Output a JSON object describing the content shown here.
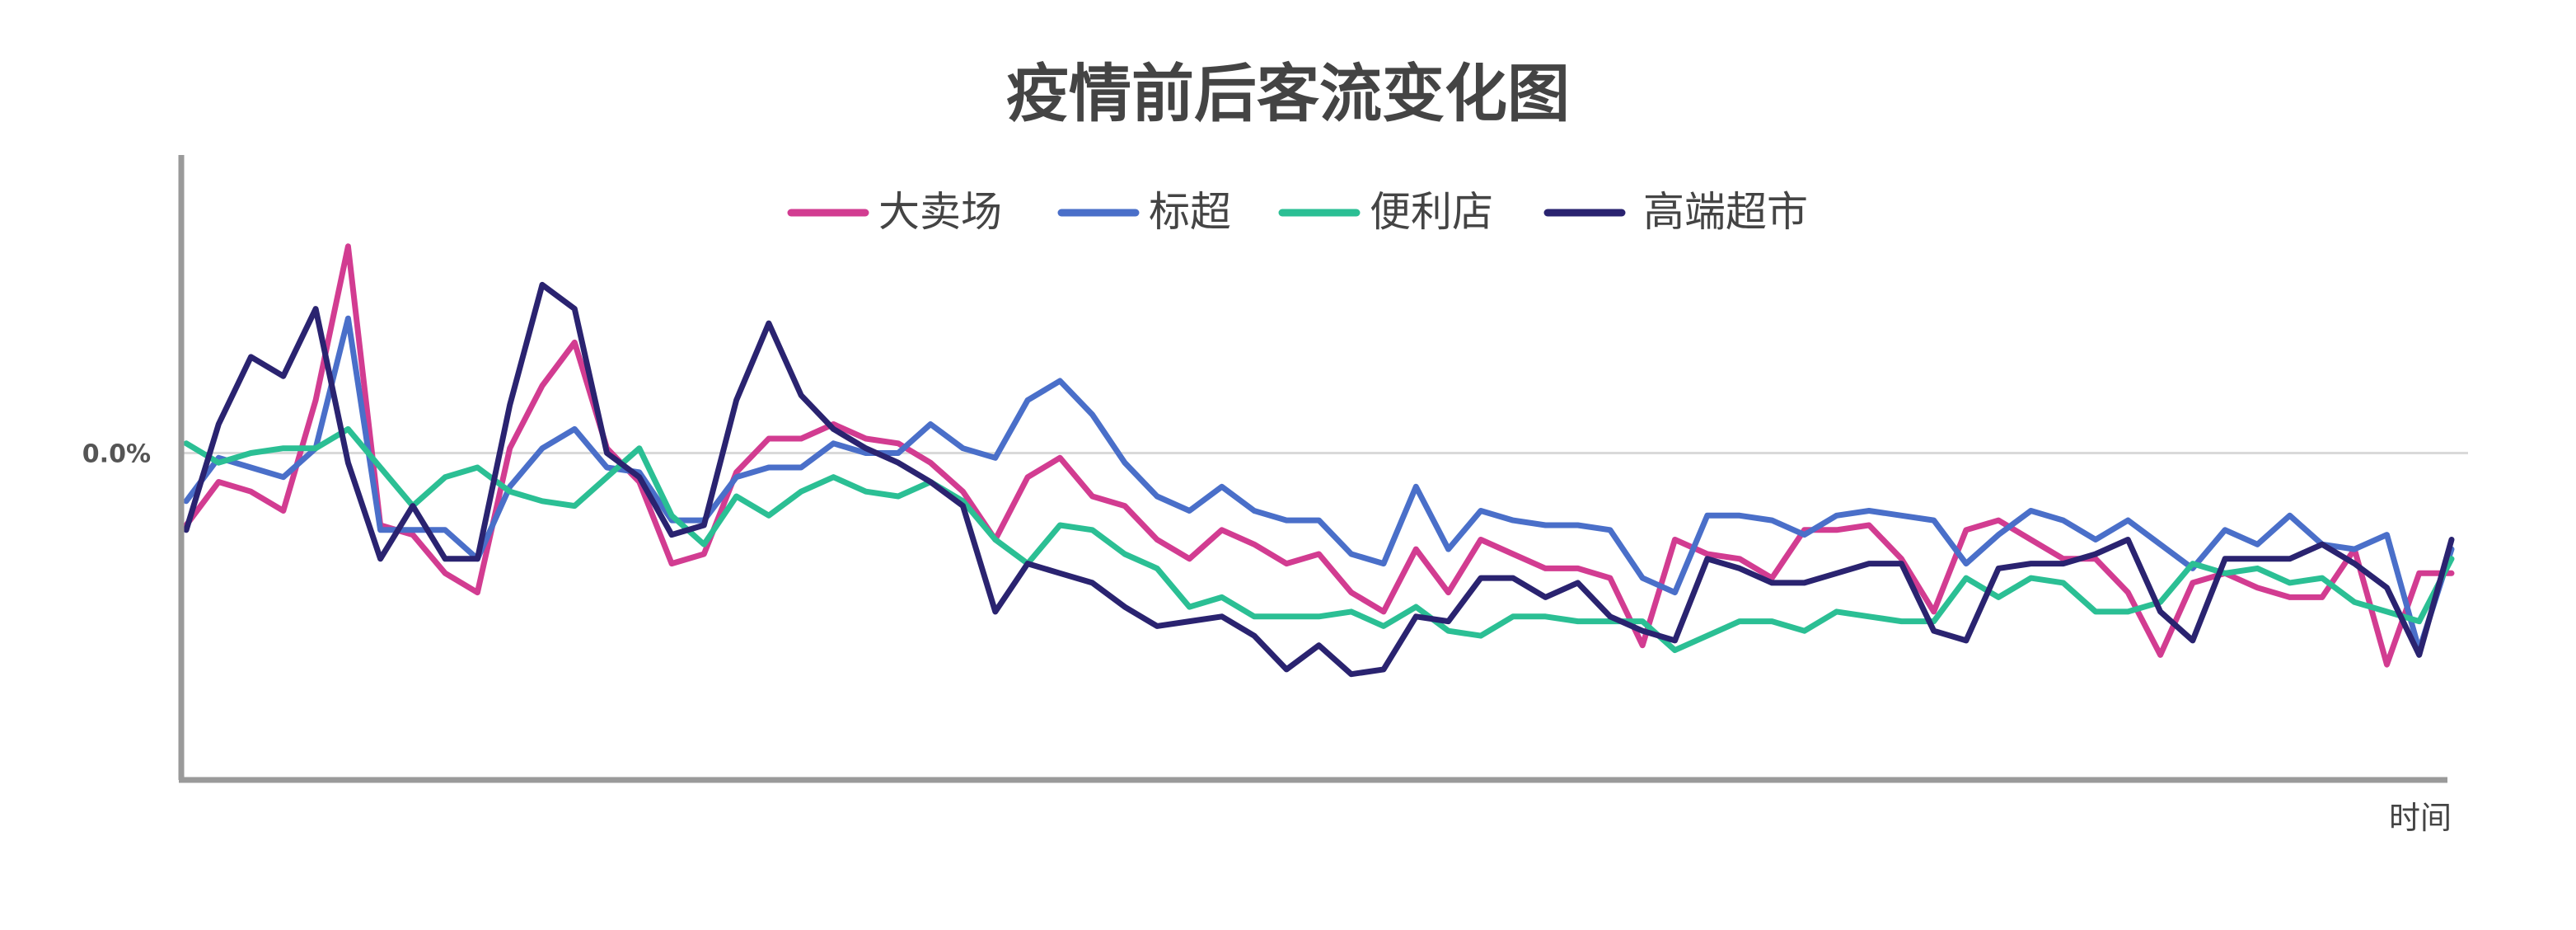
{
  "chart_data": {
    "type": "line",
    "title": "疫情前后客流变化图",
    "xlabel": "时间",
    "ylabel": "",
    "y_ticks": [
      {
        "value": 0,
        "label": "0.0%"
      }
    ],
    "ylim": [
      -0.68,
      0.62
    ],
    "x": [
      0,
      1,
      2,
      3,
      4,
      5,
      6,
      7,
      8,
      9,
      10,
      11,
      12,
      13,
      14,
      15,
      16,
      17,
      18,
      19,
      20,
      21,
      22,
      23,
      24,
      25,
      26,
      27,
      28,
      29,
      30,
      31,
      32,
      33,
      34,
      35,
      36,
      37,
      38,
      39,
      40,
      41,
      42,
      43,
      44,
      45,
      46,
      47,
      48,
      49,
      50,
      51,
      52,
      53,
      54,
      55,
      56,
      57,
      58,
      59,
      60,
      61,
      62,
      63,
      64,
      65,
      66,
      67,
      68,
      69,
      70
    ],
    "grid": false,
    "legend_position": "top",
    "series": [
      {
        "name": "大卖场",
        "color": "#d23c91",
        "values": [
          -0.15,
          -0.06,
          -0.08,
          -0.12,
          0.11,
          0.43,
          -0.15,
          -0.17,
          -0.25,
          -0.29,
          0.01,
          0.14,
          0.23,
          0.01,
          -0.06,
          -0.23,
          -0.21,
          -0.04,
          0.03,
          0.03,
          0.06,
          0.03,
          0.02,
          -0.02,
          -0.08,
          -0.18,
          -0.05,
          -0.01,
          -0.09,
          -0.11,
          -0.18,
          -0.22,
          -0.16,
          -0.19,
          -0.23,
          -0.21,
          -0.29,
          -0.33,
          -0.2,
          -0.29,
          -0.18,
          -0.21,
          -0.24,
          -0.24,
          -0.26,
          -0.4,
          -0.18,
          -0.21,
          -0.22,
          -0.26,
          -0.16,
          -0.16,
          -0.15,
          -0.22,
          -0.33,
          -0.16,
          -0.14,
          -0.18,
          -0.22,
          -0.22,
          -0.29,
          -0.42,
          -0.27,
          -0.25,
          -0.28,
          -0.3,
          -0.3,
          -0.2,
          -0.44,
          -0.25,
          -0.25
        ]
      },
      {
        "name": "标超",
        "color": "#4a6fc9",
        "values": [
          -0.1,
          -0.01,
          -0.03,
          -0.05,
          0.01,
          0.28,
          -0.16,
          -0.16,
          -0.16,
          -0.22,
          -0.07,
          0.01,
          0.05,
          -0.03,
          -0.04,
          -0.14,
          -0.14,
          -0.05,
          -0.03,
          -0.03,
          0.02,
          0.0,
          0.0,
          0.06,
          0.01,
          -0.01,
          0.11,
          0.15,
          0.08,
          -0.02,
          -0.09,
          -0.12,
          -0.07,
          -0.12,
          -0.14,
          -0.14,
          -0.21,
          -0.23,
          -0.07,
          -0.2,
          -0.12,
          -0.14,
          -0.15,
          -0.15,
          -0.16,
          -0.26,
          -0.29,
          -0.13,
          -0.13,
          -0.14,
          -0.17,
          -0.13,
          -0.12,
          -0.13,
          -0.14,
          -0.23,
          -0.17,
          -0.12,
          -0.14,
          -0.18,
          -0.14,
          -0.19,
          -0.24,
          -0.16,
          -0.19,
          -0.13,
          -0.19,
          -0.2,
          -0.17,
          -0.41,
          -0.2
        ]
      },
      {
        "name": "便利店",
        "color": "#2bbf94",
        "values": [
          0.02,
          -0.02,
          0.0,
          0.01,
          0.01,
          0.05,
          -0.03,
          -0.11,
          -0.05,
          -0.03,
          -0.08,
          -0.1,
          -0.11,
          -0.05,
          0.01,
          -0.13,
          -0.19,
          -0.09,
          -0.13,
          -0.08,
          -0.05,
          -0.08,
          -0.09,
          -0.06,
          -0.1,
          -0.18,
          -0.23,
          -0.15,
          -0.16,
          -0.21,
          -0.24,
          -0.32,
          -0.3,
          -0.34,
          -0.34,
          -0.34,
          -0.33,
          -0.36,
          -0.32,
          -0.37,
          -0.38,
          -0.34,
          -0.34,
          -0.35,
          -0.35,
          -0.35,
          -0.41,
          -0.38,
          -0.35,
          -0.35,
          -0.37,
          -0.33,
          -0.34,
          -0.35,
          -0.35,
          -0.26,
          -0.3,
          -0.26,
          -0.27,
          -0.33,
          -0.33,
          -0.31,
          -0.23,
          -0.25,
          -0.24,
          -0.27,
          -0.26,
          -0.31,
          -0.33,
          -0.35,
          -0.22
        ]
      },
      {
        "name": "高端超市",
        "color": "#2a2370",
        "values": [
          -0.16,
          0.06,
          0.2,
          0.16,
          0.3,
          -0.02,
          -0.22,
          -0.11,
          -0.22,
          -0.22,
          0.1,
          0.35,
          0.3,
          0.0,
          -0.05,
          -0.17,
          -0.15,
          0.11,
          0.27,
          0.12,
          0.05,
          0.01,
          -0.02,
          -0.06,
          -0.11,
          -0.33,
          -0.23,
          -0.25,
          -0.27,
          -0.32,
          -0.36,
          -0.35,
          -0.34,
          -0.38,
          -0.45,
          -0.4,
          -0.46,
          -0.45,
          -0.34,
          -0.35,
          -0.26,
          -0.26,
          -0.3,
          -0.27,
          -0.34,
          -0.37,
          -0.39,
          -0.22,
          -0.24,
          -0.27,
          -0.27,
          -0.25,
          -0.23,
          -0.23,
          -0.37,
          -0.39,
          -0.24,
          -0.23,
          -0.23,
          -0.21,
          -0.18,
          -0.33,
          -0.39,
          -0.22,
          -0.22,
          -0.22,
          -0.19,
          -0.23,
          -0.28,
          -0.42,
          -0.18
        ]
      }
    ]
  }
}
